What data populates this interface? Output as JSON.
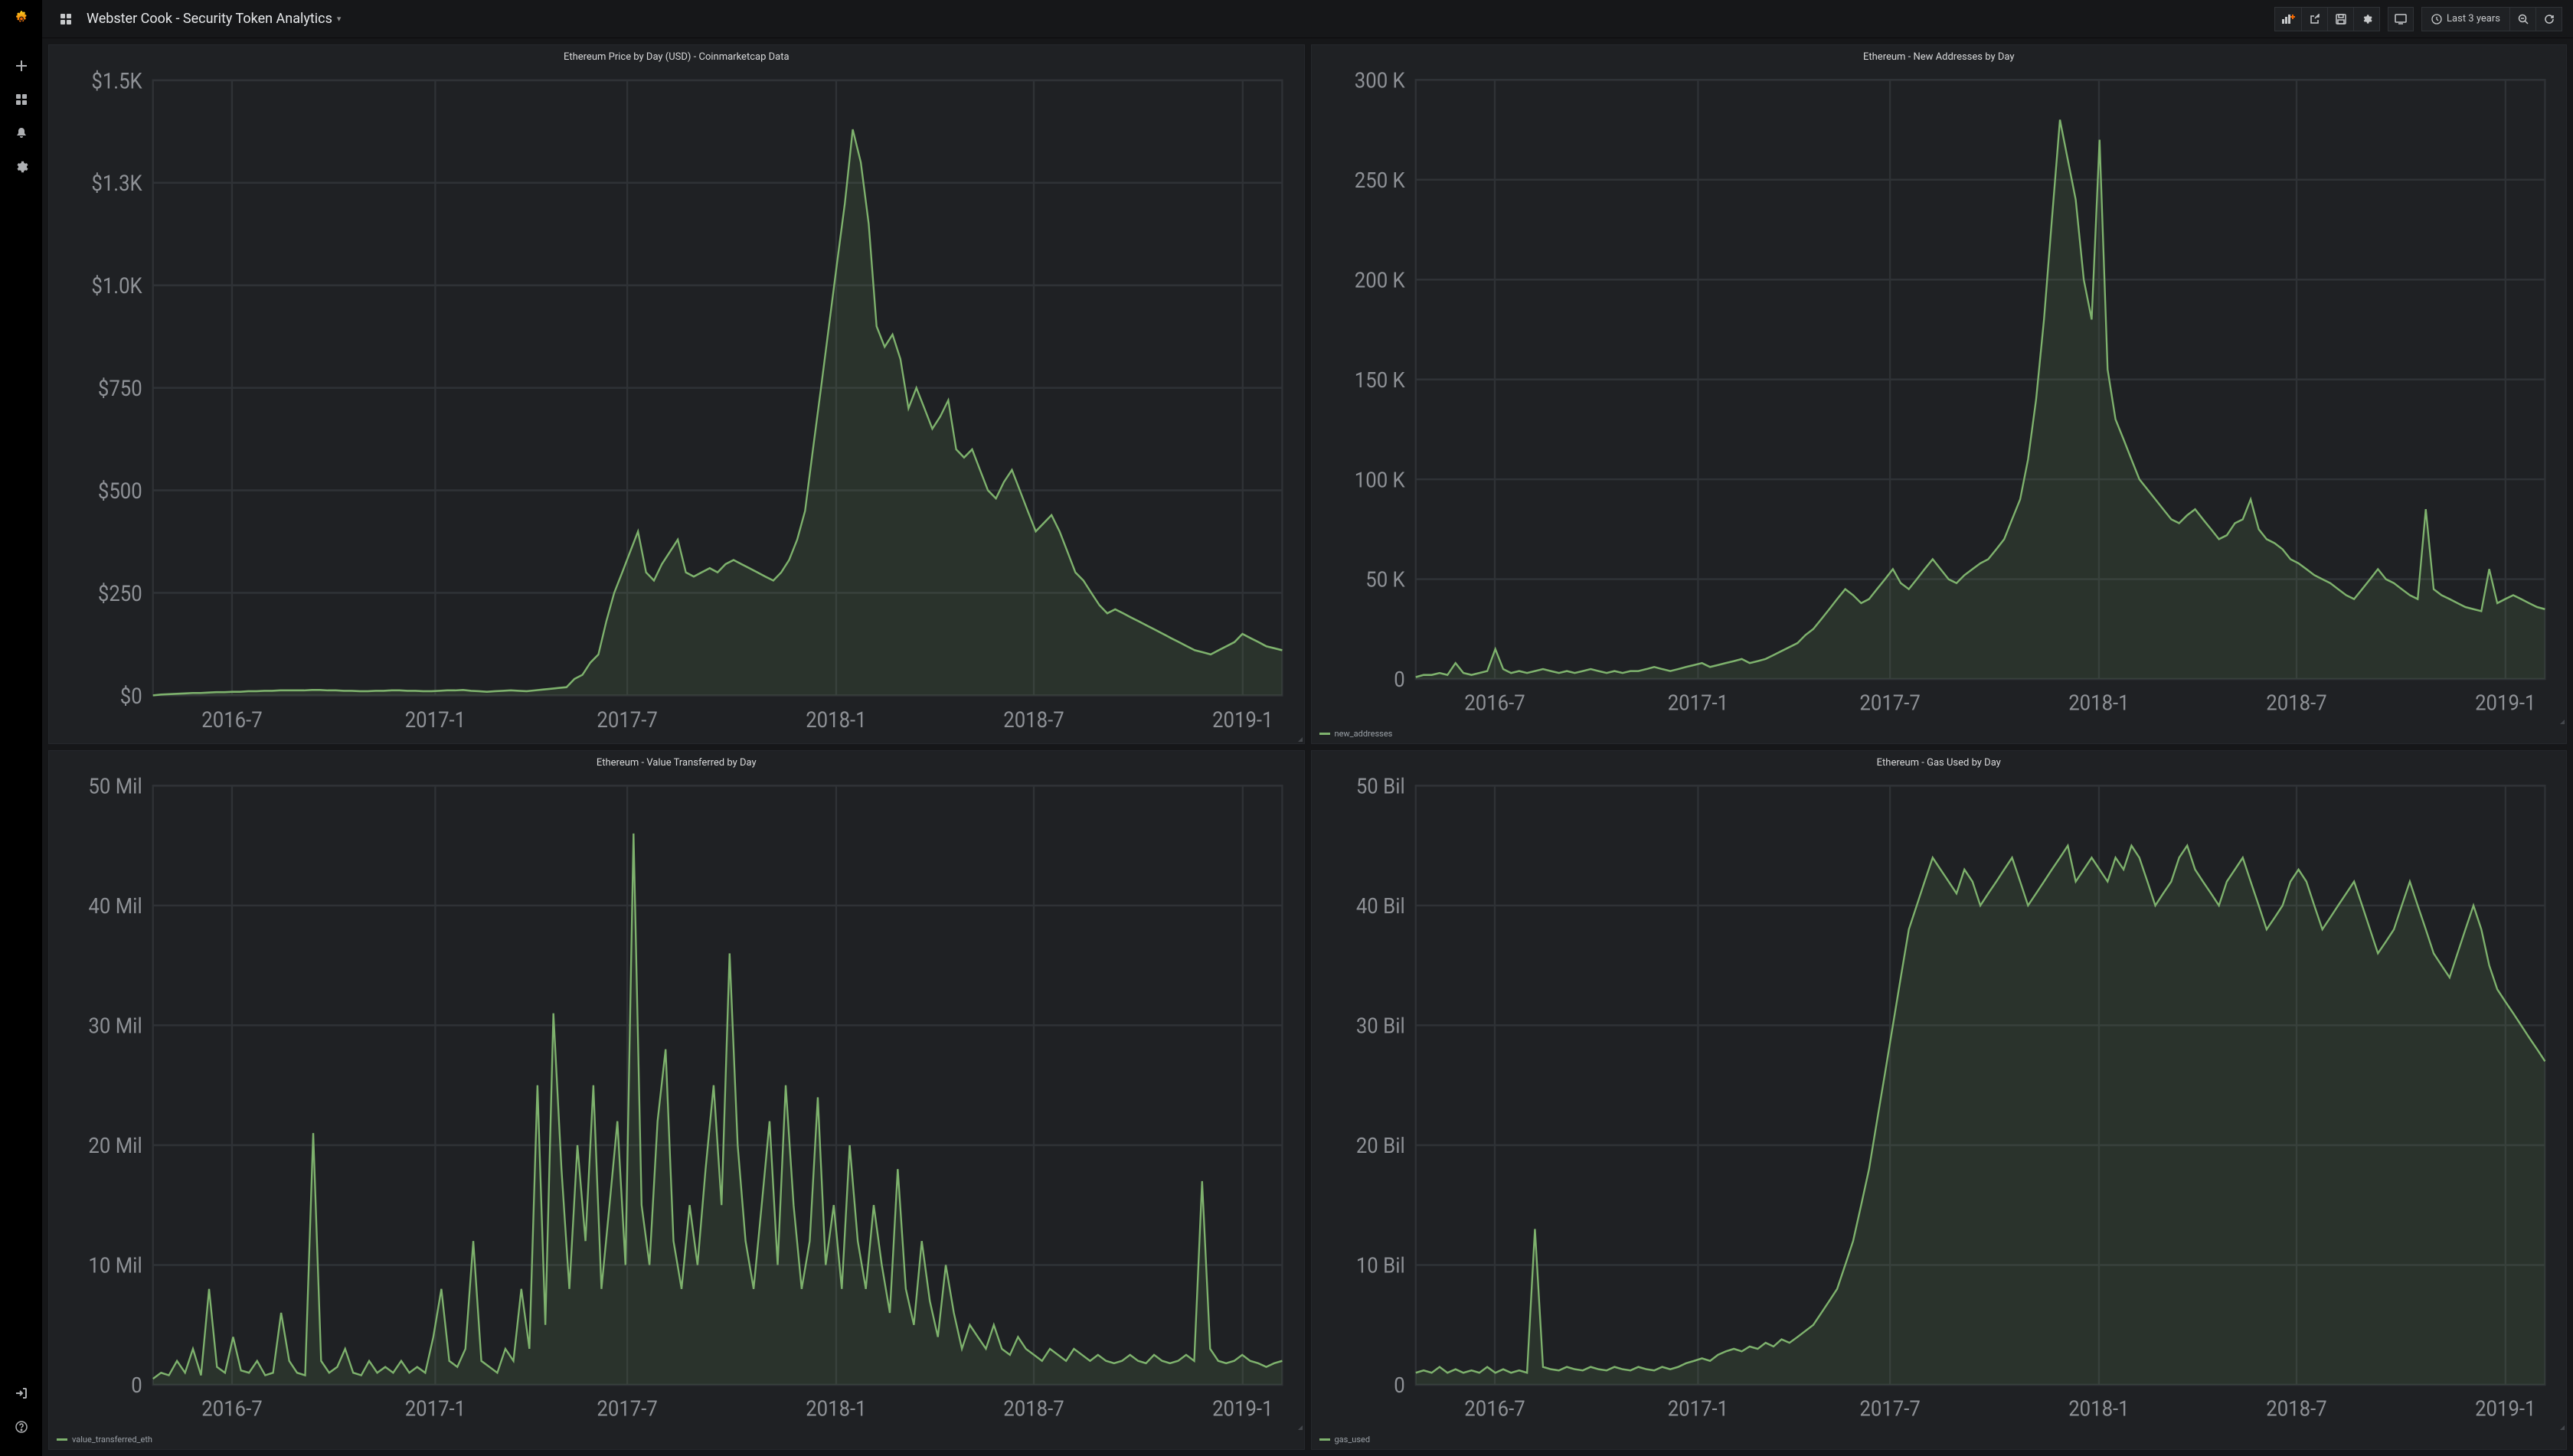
{
  "colors": {
    "page_bg": "#000000",
    "panel_bg": "#1f2124",
    "panel_border": "#25282c",
    "grid_line": "#2f3236",
    "axis_border": "#44474c",
    "text_primary": "#d8d9da",
    "text_muted": "#8e9196",
    "accent_orange": "#f46800",
    "series_green": "#7eb26d",
    "series_area_opacity": 0.12
  },
  "topbar": {
    "title": "Webster Cook - Security Token Analytics",
    "time_range_label": "Last 3 years"
  },
  "x_axis": {
    "ticks": [
      "2016-7",
      "2017-1",
      "2017-7",
      "2018-1",
      "2018-7",
      "2019-1"
    ],
    "positions": [
      0.07,
      0.25,
      0.42,
      0.605,
      0.78,
      0.965
    ]
  },
  "panels": [
    {
      "id": "price",
      "title": "Ethereum Price by Day (USD) - Coinmarketcap Data",
      "type": "line",
      "y_ticks": [
        "$0",
        "$250",
        "$500",
        "$750",
        "$1.0K",
        "$1.3K",
        "$1.5K"
      ],
      "y_max": 1500,
      "legend": null,
      "series": [
        0,
        2,
        3,
        4,
        5,
        6,
        6,
        7,
        8,
        8,
        9,
        9,
        10,
        10,
        11,
        11,
        12,
        12,
        12,
        12,
        13,
        13,
        12,
        12,
        11,
        11,
        10,
        10,
        11,
        11,
        12,
        12,
        11,
        11,
        10,
        10,
        11,
        12,
        12,
        13,
        11,
        10,
        9,
        10,
        11,
        12,
        11,
        10,
        12,
        14,
        16,
        18,
        20,
        40,
        50,
        80,
        100,
        180,
        250,
        300,
        350,
        400,
        300,
        280,
        320,
        350,
        380,
        300,
        290,
        300,
        310,
        300,
        320,
        330,
        320,
        310,
        300,
        290,
        280,
        300,
        330,
        380,
        450,
        600,
        750,
        900,
        1050,
        1200,
        1380,
        1300,
        1150,
        900,
        850,
        880,
        820,
        700,
        750,
        700,
        650,
        680,
        720,
        600,
        580,
        600,
        550,
        500,
        480,
        520,
        550,
        500,
        450,
        400,
        420,
        440,
        400,
        350,
        300,
        280,
        250,
        220,
        200,
        210,
        200,
        190,
        180,
        170,
        160,
        150,
        140,
        130,
        120,
        110,
        105,
        100,
        110,
        120,
        130,
        150,
        140,
        130,
        120,
        115,
        110
      ]
    },
    {
      "id": "addresses",
      "title": "Ethereum - New Addresses by Day",
      "type": "line",
      "y_ticks": [
        "0",
        "50 K",
        "100 K",
        "150 K",
        "200 K",
        "250 K",
        "300 K"
      ],
      "y_max": 300,
      "legend": "new_addresses",
      "series": [
        1,
        2,
        2,
        3,
        2,
        8,
        3,
        2,
        3,
        4,
        15,
        5,
        3,
        4,
        3,
        4,
        5,
        4,
        3,
        4,
        3,
        4,
        5,
        4,
        3,
        4,
        3,
        4,
        4,
        5,
        6,
        5,
        4,
        5,
        6,
        7,
        8,
        6,
        7,
        8,
        9,
        10,
        8,
        9,
        10,
        12,
        14,
        16,
        18,
        22,
        25,
        30,
        35,
        40,
        45,
        42,
        38,
        40,
        45,
        50,
        55,
        48,
        45,
        50,
        55,
        60,
        55,
        50,
        48,
        52,
        55,
        58,
        60,
        65,
        70,
        80,
        90,
        110,
        140,
        180,
        230,
        280,
        260,
        240,
        200,
        180,
        270,
        155,
        130,
        120,
        110,
        100,
        95,
        90,
        85,
        80,
        78,
        82,
        85,
        80,
        75,
        70,
        72,
        78,
        80,
        90,
        75,
        70,
        68,
        65,
        60,
        58,
        55,
        52,
        50,
        48,
        45,
        42,
        40,
        45,
        50,
        55,
        50,
        48,
        45,
        42,
        40,
        85,
        45,
        42,
        40,
        38,
        36,
        35,
        34,
        55,
        38,
        40,
        42,
        40,
        38,
        36,
        35
      ]
    },
    {
      "id": "value",
      "title": "Ethereum - Value Transferred by Day",
      "type": "line",
      "y_ticks": [
        "0",
        "10 Mil",
        "20 Mil",
        "30 Mil",
        "40 Mil",
        "50 Mil"
      ],
      "y_max": 50,
      "legend": "value_transferred_eth",
      "series": [
        0.5,
        1,
        0.8,
        2,
        1,
        3,
        0.8,
        8,
        1.5,
        1,
        4,
        1.2,
        1,
        2,
        0.8,
        1,
        6,
        2,
        1,
        0.8,
        21,
        2,
        1,
        1.5,
        3,
        1,
        0.8,
        2,
        1,
        1.5,
        1,
        2,
        1,
        1.5,
        1,
        4,
        8,
        2,
        1.5,
        3,
        12,
        2,
        1.5,
        1,
        3,
        2,
        8,
        3,
        25,
        5,
        31,
        18,
        8,
        20,
        12,
        25,
        8,
        15,
        22,
        10,
        46,
        15,
        10,
        22,
        28,
        12,
        8,
        15,
        10,
        18,
        25,
        15,
        36,
        20,
        12,
        8,
        15,
        22,
        10,
        25,
        15,
        8,
        12,
        24,
        10,
        15,
        8,
        20,
        12,
        8,
        15,
        10,
        6,
        18,
        8,
        5,
        12,
        7,
        4,
        10,
        6,
        3,
        5,
        4,
        3,
        5,
        3,
        2.5,
        4,
        3,
        2.5,
        2,
        3,
        2.5,
        2,
        3,
        2.5,
        2,
        2.5,
        2,
        1.8,
        2,
        2.5,
        2,
        1.8,
        2.5,
        2,
        1.8,
        2,
        2.5,
        2,
        17,
        3,
        2,
        1.8,
        2,
        2.5,
        2,
        1.8,
        1.5,
        1.8,
        2
      ]
    },
    {
      "id": "gas",
      "title": "Ethereum - Gas Used by Day",
      "type": "line",
      "y_ticks": [
        "0",
        "10 Bil",
        "20 Bil",
        "30 Bil",
        "40 Bil",
        "50 Bil"
      ],
      "y_max": 50,
      "legend": "gas_used",
      "series": [
        1,
        1.2,
        1,
        1.5,
        1,
        1.3,
        1,
        1.2,
        1,
        1.5,
        1,
        1.3,
        1,
        1.2,
        1,
        13,
        1.5,
        1.3,
        1.2,
        1.5,
        1.3,
        1.2,
        1.5,
        1.3,
        1.2,
        1.5,
        1.3,
        1.2,
        1.5,
        1.3,
        1.2,
        1.5,
        1.3,
        1.5,
        1.8,
        2,
        2.2,
        2,
        2.5,
        2.8,
        3,
        2.8,
        3.2,
        3,
        3.5,
        3.2,
        3.8,
        3.5,
        4,
        4.5,
        5,
        6,
        7,
        8,
        10,
        12,
        15,
        18,
        22,
        26,
        30,
        34,
        38,
        40,
        42,
        44,
        43,
        42,
        41,
        43,
        42,
        40,
        41,
        42,
        43,
        44,
        42,
        40,
        41,
        42,
        43,
        44,
        45,
        42,
        43,
        44,
        43,
        42,
        44,
        43,
        45,
        44,
        42,
        40,
        41,
        42,
        44,
        45,
        43,
        42,
        41,
        40,
        42,
        43,
        44,
        42,
        40,
        38,
        39,
        40,
        42,
        43,
        42,
        40,
        38,
        39,
        40,
        41,
        42,
        40,
        38,
        36,
        37,
        38,
        40,
        42,
        40,
        38,
        36,
        35,
        34,
        36,
        38,
        40,
        38,
        35,
        33,
        32,
        31,
        30,
        29,
        28,
        27
      ]
    }
  ]
}
